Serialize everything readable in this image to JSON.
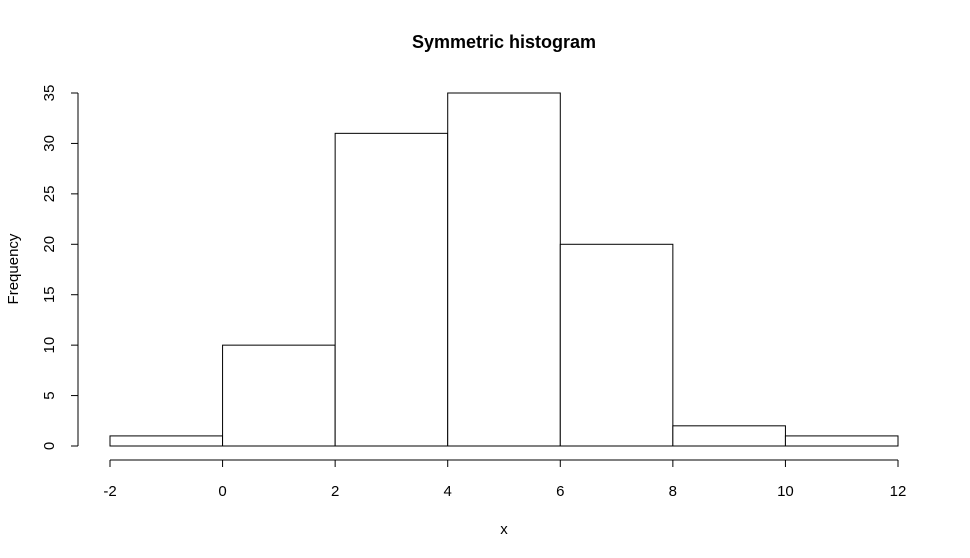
{
  "chart_data": {
    "type": "bar",
    "title": "Symmetric histogram",
    "xlabel": "x",
    "ylabel": "Frequency",
    "bins": [
      {
        "start": -2,
        "end": 0,
        "value": 1
      },
      {
        "start": 0,
        "end": 2,
        "value": 10
      },
      {
        "start": 2,
        "end": 4,
        "value": 31
      },
      {
        "start": 4,
        "end": 6,
        "value": 35
      },
      {
        "start": 6,
        "end": 8,
        "value": 20
      },
      {
        "start": 8,
        "end": 10,
        "value": 2
      },
      {
        "start": 10,
        "end": 12,
        "value": 1
      }
    ],
    "xlim": [
      -2,
      12
    ],
    "ylim": [
      0,
      35
    ],
    "xticks": [
      "-2",
      "0",
      "2",
      "4",
      "6",
      "8",
      "10",
      "12"
    ],
    "yticks": [
      "0",
      "5",
      "10",
      "15",
      "20",
      "25",
      "30",
      "35"
    ],
    "grid": false,
    "legend": "none"
  }
}
